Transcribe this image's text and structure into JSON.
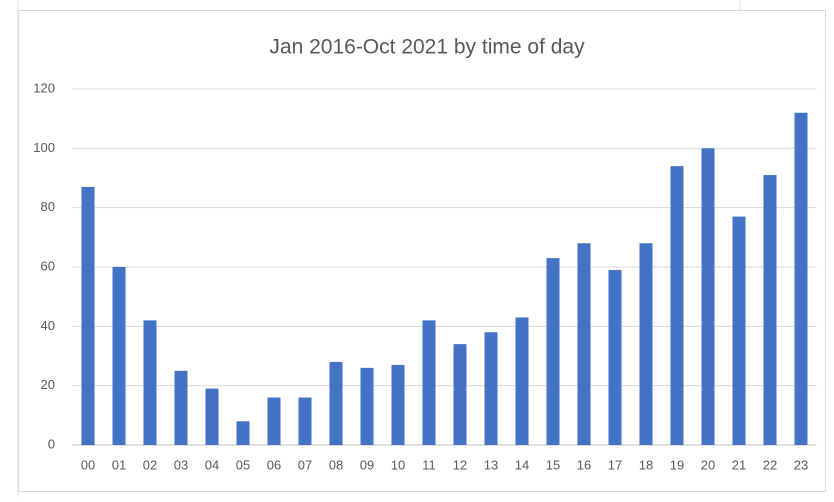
{
  "chart_data": {
    "type": "bar",
    "title": "Jan 2016-Oct 2021 by time of day",
    "categories": [
      "00",
      "01",
      "02",
      "03",
      "04",
      "05",
      "06",
      "07",
      "08",
      "09",
      "10",
      "11",
      "12",
      "13",
      "14",
      "15",
      "16",
      "17",
      "18",
      "19",
      "20",
      "21",
      "22",
      "23"
    ],
    "values": [
      87,
      60,
      42,
      25,
      19,
      8,
      16,
      16,
      28,
      26,
      27,
      42,
      34,
      38,
      43,
      63,
      68,
      59,
      68,
      94,
      100,
      77,
      91,
      112
    ],
    "color": "#4472c4",
    "ylim": [
      0,
      120
    ],
    "yticks": [
      0,
      20,
      40,
      60,
      80,
      100,
      120
    ],
    "grid": true
  }
}
